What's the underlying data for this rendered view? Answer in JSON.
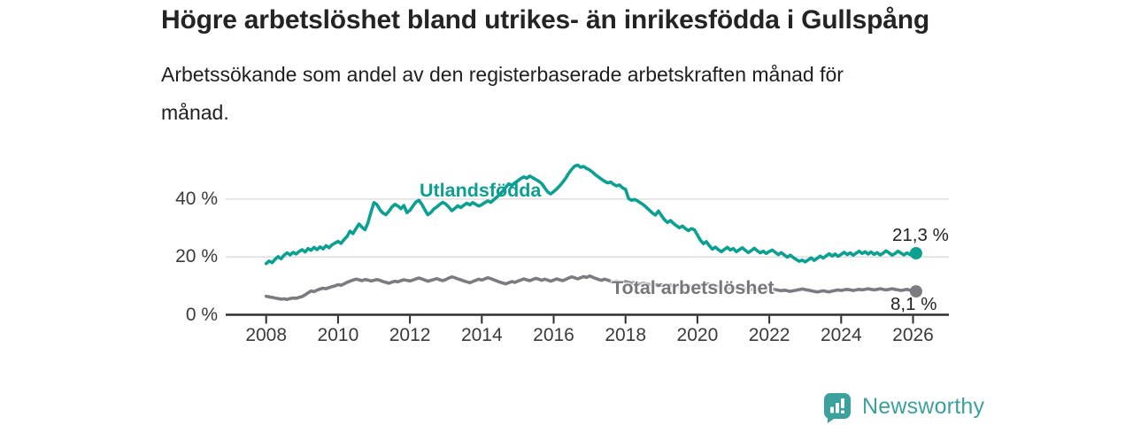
{
  "title": "Högre arbetslöshet bland utrikes- än inrikesfödda i Gullspång",
  "subtitle": "Arbetssökande som andel av den registerbaserade arbetskraften månad för\nmånad.",
  "chart_data": {
    "type": "line",
    "x_axis": {
      "start_year": 2008,
      "months_per_point": 1,
      "ticks": [
        {
          "year": 2008,
          "label": "2008"
        },
        {
          "year": 2010,
          "label": "2010"
        },
        {
          "year": 2012,
          "label": "2012"
        },
        {
          "year": 2014,
          "label": "2014"
        },
        {
          "year": 2016,
          "label": "2016"
        },
        {
          "year": 2018,
          "label": "2018"
        },
        {
          "year": 2020,
          "label": "2020"
        },
        {
          "year": 2022,
          "label": "2022"
        },
        {
          "year": 2024,
          "label": "2024"
        },
        {
          "year": 2026,
          "label": "2026"
        }
      ]
    },
    "y_axis": {
      "ticks": [
        {
          "value": 40,
          "label": "40 %"
        },
        {
          "value": 20,
          "label": "20 %"
        },
        {
          "value": 0,
          "label": "0 %"
        }
      ],
      "ylim": [
        0,
        55
      ],
      "grid": "horizontal-only"
    },
    "colors": {
      "grid": "#d9d9d9",
      "axis": "#2e2e2e"
    },
    "legend_position": "inline-labels-on-lines",
    "series": [
      {
        "name": "Utlandsfödda",
        "color": "#0ca092",
        "end_label": "21,3 %",
        "end_value": 21.3,
        "values": [
          17.7,
          18.6,
          18.0,
          19.2,
          20.1,
          19.4,
          20.6,
          21.4,
          20.7,
          21.6,
          21.0,
          21.9,
          22.5,
          21.7,
          22.9,
          22.3,
          23.3,
          22.5,
          23.5,
          22.8,
          23.9,
          23.2,
          24.2,
          24.8,
          25.4,
          24.7,
          26.0,
          27.1,
          28.9,
          28.1,
          29.8,
          31.4,
          30.3,
          29.4,
          31.8,
          35.5,
          38.8,
          38.1,
          36.3,
          35.2,
          34.6,
          35.8,
          37.3,
          38.2,
          37.6,
          36.7,
          37.8,
          35.3,
          36.1,
          37.6,
          39.0,
          39.6,
          38.2,
          36.3,
          34.6,
          35.4,
          36.6,
          37.3,
          38.2,
          38.9,
          38.3,
          37.2,
          36.0,
          36.8,
          37.7,
          37.1,
          37.9,
          38.6,
          38.0,
          38.8,
          38.2,
          37.6,
          38.1,
          38.8,
          39.4,
          38.9,
          39.8,
          40.7,
          41.6,
          42.8,
          44.1,
          45.3,
          44.7,
          45.6,
          46.3,
          47.1,
          47.7,
          47.2,
          48.0,
          47.4,
          46.8,
          46.2,
          45.4,
          43.9,
          42.5,
          41.8,
          42.6,
          43.5,
          44.6,
          45.8,
          47.2,
          48.9,
          50.3,
          51.4,
          51.8,
          51.0,
          51.3,
          50.6,
          50.1,
          49.3,
          48.4,
          47.6,
          46.9,
          46.2,
          45.6,
          45.9,
          45.1,
          44.6,
          44.9,
          43.9,
          43.4,
          40.2,
          39.6,
          39.9,
          39.4,
          38.7,
          38.0,
          37.1,
          36.1,
          35.2,
          34.5,
          35.9,
          34.3,
          32.9,
          31.9,
          32.6,
          31.6,
          30.8,
          30.1,
          30.7,
          29.8,
          29.1,
          29.8,
          29.4,
          27.6,
          25.8,
          24.6,
          25.3,
          23.9,
          22.7,
          23.4,
          22.5,
          21.8,
          22.6,
          23.3,
          22.4,
          22.9,
          21.8,
          22.5,
          23.2,
          22.3,
          21.5,
          22.2,
          23.0,
          22.1,
          21.4,
          22.0,
          21.2,
          21.9,
          22.4,
          21.6,
          20.8,
          21.5,
          20.7,
          19.9,
          20.6,
          19.8,
          19.1,
          18.5,
          18.9,
          18.3,
          19.0,
          19.7,
          18.8,
          19.5,
          20.3,
          19.6,
          20.4,
          21.1,
          20.3,
          21.0,
          20.2,
          20.9,
          21.6,
          20.8,
          21.4,
          20.6,
          21.3,
          22.0,
          21.2,
          21.8,
          21.0,
          21.7,
          20.9,
          21.5,
          20.7,
          21.3,
          22.1,
          21.4,
          20.6,
          21.2,
          22.0,
          21.3,
          20.7,
          21.4,
          20.8,
          21.0,
          21.3
        ]
      },
      {
        "name": "Total arbetslöshet",
        "color": "#7b7b80",
        "end_label": "8,1 %",
        "end_value": 8.1,
        "values": [
          6.4,
          6.2,
          6.0,
          5.8,
          5.6,
          5.4,
          5.5,
          5.3,
          5.6,
          5.8,
          5.7,
          6.0,
          6.3,
          6.9,
          7.6,
          8.2,
          8.0,
          8.5,
          8.9,
          9.2,
          9.0,
          9.4,
          9.7,
          10.0,
          10.4,
          10.2,
          10.7,
          11.2,
          11.6,
          12.0,
          12.3,
          12.1,
          11.8,
          12.2,
          12.0,
          11.7,
          11.9,
          12.2,
          11.9,
          11.5,
          11.2,
          10.9,
          11.3,
          11.6,
          11.4,
          11.8,
          12.1,
          11.9,
          11.7,
          12.0,
          12.4,
          12.7,
          12.4,
          12.0,
          11.6,
          11.9,
          12.2,
          12.5,
          12.1,
          11.8,
          12.2,
          12.7,
          13.1,
          12.8,
          12.4,
          12.1,
          11.7,
          11.4,
          11.1,
          11.5,
          11.9,
          12.3,
          12.0,
          12.4,
          12.8,
          12.5,
          12.1,
          11.7,
          11.3,
          11.0,
          10.7,
          11.1,
          11.5,
          11.2,
          11.6,
          12.0,
          12.4,
          12.1,
          11.8,
          12.2,
          12.6,
          12.3,
          11.9,
          12.3,
          12.0,
          11.6,
          12.0,
          12.4,
          12.1,
          11.8,
          12.2,
          12.7,
          13.1,
          12.8,
          12.4,
          12.8,
          13.2,
          12.9,
          13.4,
          13.0,
          12.6,
          12.2,
          11.9,
          12.3,
          12.0,
          11.6,
          11.3,
          11.7,
          11.4,
          11.1,
          11.5,
          11.2,
          10.9,
          11.2,
          10.9,
          10.6,
          10.9,
          10.7,
          10.4,
          10.7,
          10.4,
          10.1,
          10.4,
          10.2,
          10.0,
          10.3,
          10.0,
          9.8,
          10.1,
          9.9,
          9.6,
          9.9,
          9.7,
          9.9,
          10.2,
          10.0,
          10.4,
          10.8,
          10.5,
          10.2,
          10.0,
          9.8,
          9.5,
          9.3,
          9.1,
          9.3,
          9.5,
          9.3,
          9.1,
          8.9,
          9.1,
          8.9,
          8.7,
          8.9,
          8.7,
          8.5,
          8.7,
          8.5,
          8.7,
          8.9,
          8.7,
          8.5,
          8.3,
          8.5,
          8.3,
          8.1,
          8.3,
          8.5,
          8.7,
          8.9,
          8.7,
          8.5,
          8.3,
          8.1,
          7.9,
          8.1,
          8.3,
          8.1,
          7.9,
          8.2,
          8.4,
          8.6,
          8.4,
          8.6,
          8.8,
          8.6,
          8.4,
          8.6,
          8.8,
          8.6,
          8.8,
          9.0,
          8.8,
          8.6,
          8.8,
          9.0,
          8.8,
          8.6,
          8.8,
          9.0,
          8.8,
          8.6,
          8.4,
          8.6,
          8.8,
          8.5,
          8.3,
          8.1
        ]
      }
    ]
  },
  "footer": {
    "brand": "Newsworthy",
    "logo_icon": "bar-chart-speech-bubble-icon",
    "brand_color": "#3ba19d"
  }
}
